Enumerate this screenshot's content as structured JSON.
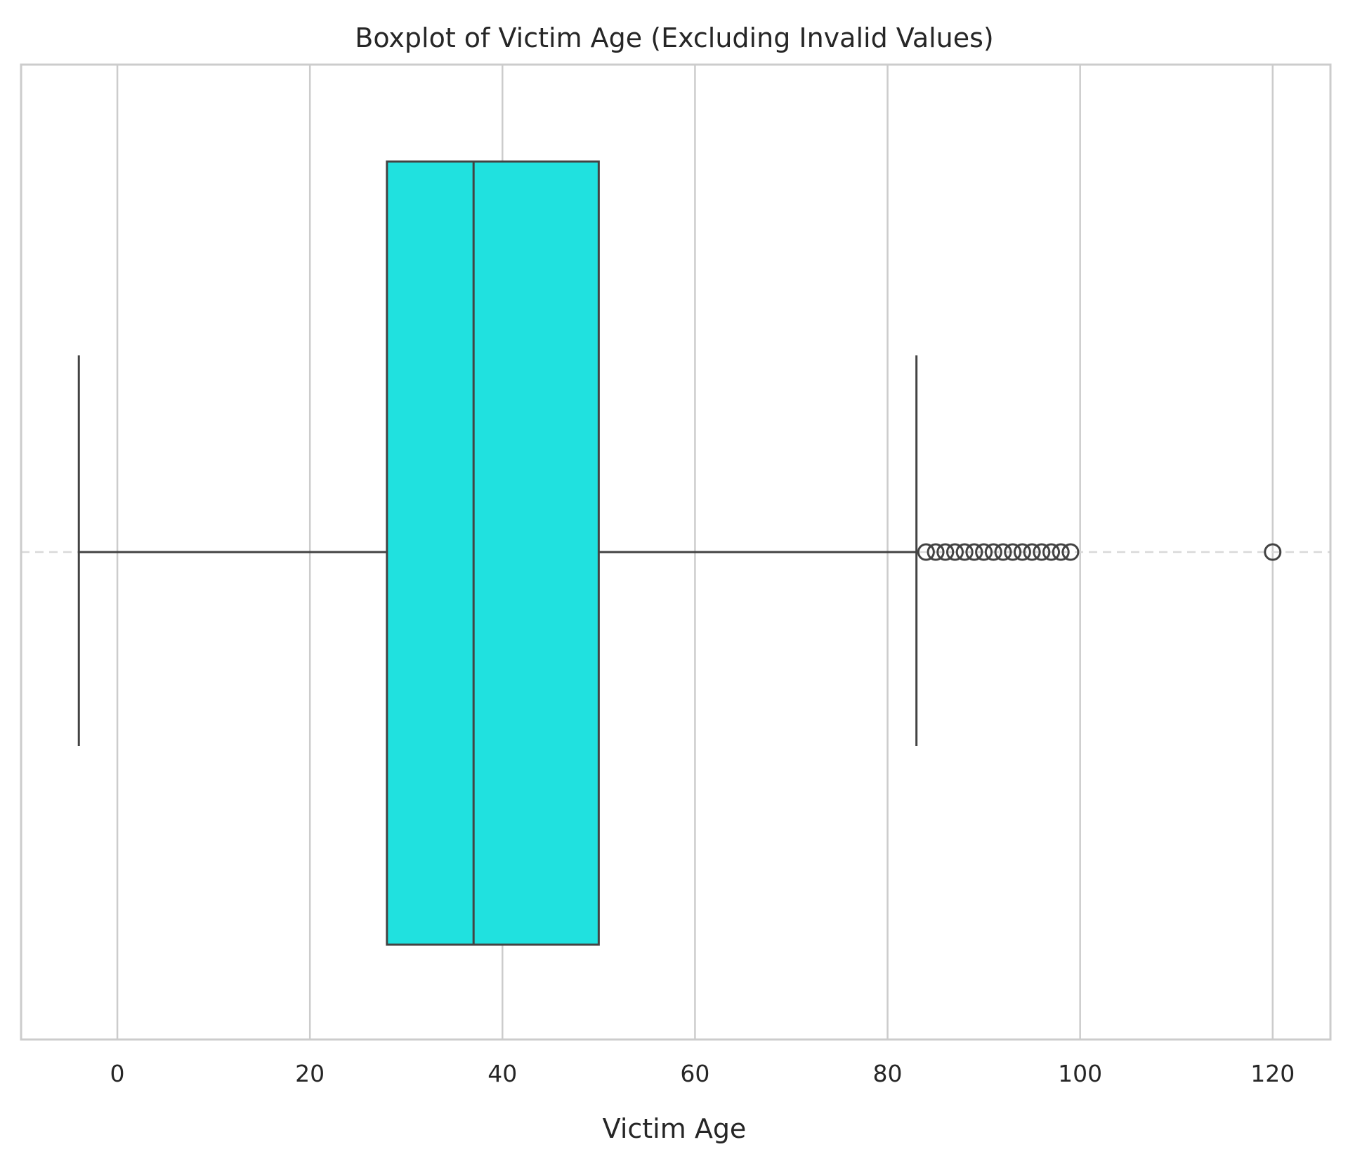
{
  "chart_data": {
    "type": "boxplot",
    "orientation": "horizontal",
    "title": "Boxplot of Victim Age (Excluding Invalid Values)",
    "xlabel": "Victim Age",
    "ylabel": "",
    "xlim": [
      -10,
      126
    ],
    "xticks": [
      0,
      20,
      40,
      60,
      80,
      100,
      120
    ],
    "grid": "vertical",
    "box": {
      "whisker_low": -4,
      "q1": 28,
      "median": 37,
      "q3": 50,
      "whisker_high": 83
    },
    "outliers": [
      84,
      85,
      86,
      87,
      88,
      89,
      90,
      91,
      92,
      93,
      94,
      95,
      96,
      97,
      98,
      99,
      120
    ],
    "colors": {
      "box_fill": "#20e1df",
      "line": "#434343",
      "grid": "#cccccc",
      "spine": "#cccccc",
      "mean_dash": "#d9d9d9"
    }
  }
}
